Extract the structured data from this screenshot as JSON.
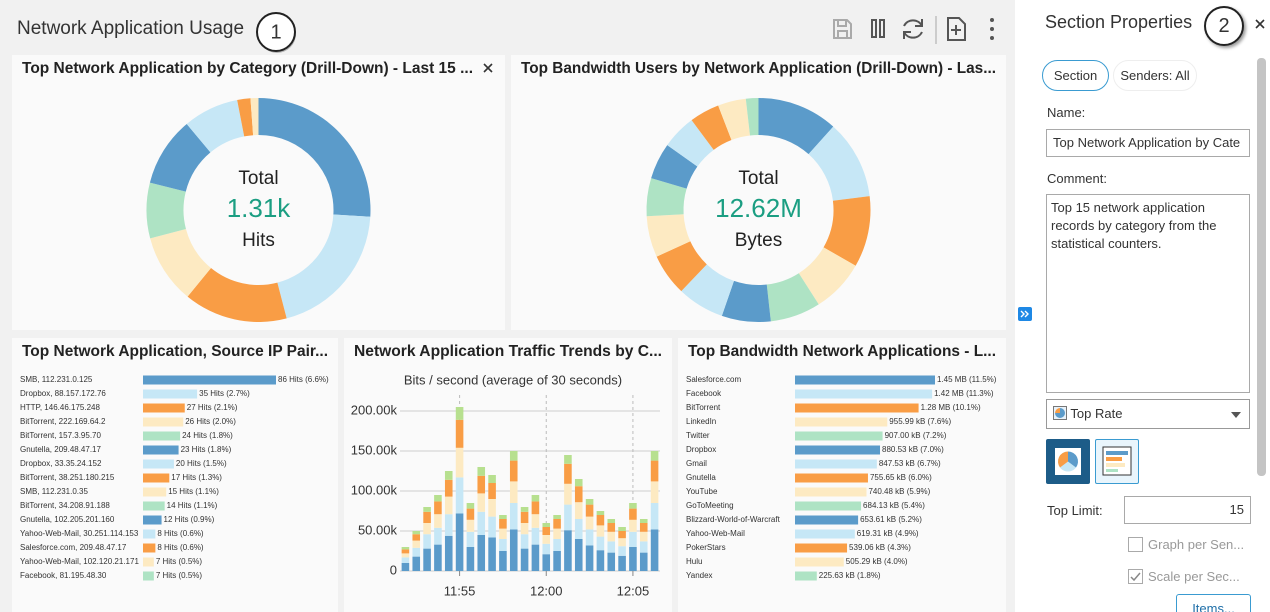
{
  "header": {
    "title": "Network Application Usage",
    "badge": "1"
  },
  "panels": [
    {
      "type": "donut",
      "title": "Top Network Application by Category (Drill-Down) - Last 15 ...",
      "center_label": "Total",
      "center_value": "1.31k",
      "center_unit": "Hits",
      "values": [
        340,
        262,
        196,
        131,
        105,
        131,
        105,
        25,
        15
      ],
      "colors": [
        "#5b9bca",
        "#c6e7f6",
        "#f99d45",
        "#fdeac2",
        "#aee3c4"
      ]
    },
    {
      "type": "donut",
      "title": "Top Bandwidth Users by Network Application (Drill-Down) - Las...",
      "center_label": "Total",
      "center_value": "12.62M",
      "center_unit": "Bytes"
    },
    {
      "type": "hbar",
      "title": "Top Network Application, Source IP Pair...",
      "categories": [
        "SMB, 112.231.0.125",
        "Dropbox, 88.157.172.76",
        "HTTP, 146.46.175.248",
        "BitTorrent, 222.169.64.2",
        "BitTorrent, 157.3.95.70",
        "Gnutella, 209.48.47.17",
        "Dropbox, 33.35.24.152",
        "BitTorrent, 38.251.180.215",
        "SMB, 112.231.0.35",
        "BitTorrent, 34.208.91.188",
        "Gnutella, 102.205.201.160",
        "Yahoo-Web-Mail, 30.251.114.153",
        "Salesforce.com, 209.48.47.17",
        "Yahoo-Web-Mail, 102.120.21.171",
        "Facebook, 81.195.48.30"
      ],
      "values": [
        86,
        35,
        27,
        26,
        24,
        23,
        20,
        17,
        15,
        14,
        12,
        8,
        8,
        7,
        7
      ],
      "value_labels": [
        "86 Hits (6.6%)",
        "35 Hits (2.7%)",
        "27 Hits (2.1%)",
        "26 Hits (2.0%)",
        "24 Hits (1.8%)",
        "23 Hits (1.8%)",
        "20 Hits (1.5%)",
        "17 Hits (1.3%)",
        "15 Hits (1.1%)",
        "14 Hits (1.1%)",
        "12 Hits (0.9%)",
        "8 Hits (0.6%)",
        "8 Hits (0.6%)",
        "7 Hits (0.5%)",
        "7 Hits (0.5%)"
      ],
      "colors": [
        "#5b9bca",
        "#c6e7f6",
        "#f99d45",
        "#fdeac2",
        "#aee3c4"
      ]
    },
    {
      "type": "stacked-bar",
      "title": "Network Application Traffic Trends by C...",
      "subtitle": "Bits / second (average of 30 seconds)",
      "ylim": [
        0,
        220000
      ],
      "yticks": [
        {
          "value": 0,
          "label": "0"
        },
        {
          "value": 50000,
          "label": "50.00k"
        },
        {
          "value": 100000,
          "label": "100.00k"
        },
        {
          "value": 150000,
          "label": "150.00k"
        },
        {
          "value": 200000,
          "label": "200.00k"
        }
      ],
      "xlim": [
        -0.5,
        23.5
      ],
      "xticks": [
        {
          "value": 5,
          "label": "11:55"
        },
        {
          "value": 13,
          "label": "12:00"
        },
        {
          "value": 21,
          "label": "12:05"
        }
      ],
      "grid": true,
      "series": [
        {
          "color": "#5b9bca",
          "values": [
            10000,
            18000,
            28000,
            33000,
            44000,
            72000,
            30000,
            45000,
            42000,
            25000,
            52000,
            28000,
            33000,
            21000,
            25000,
            51000,
            40000,
            32000,
            26000,
            23000,
            19000,
            30000,
            23000,
            52000
          ]
        },
        {
          "color": "#c6e7f6",
          "values": [
            7000,
            11000,
            18000,
            21000,
            27000,
            45000,
            19000,
            29000,
            26000,
            15000,
            33000,
            18000,
            21000,
            13000,
            15000,
            32000,
            25000,
            20000,
            17000,
            14000,
            12000,
            19000,
            14000,
            33000
          ]
        },
        {
          "color": "#fdeac2",
          "values": [
            5000,
            9000,
            14000,
            17000,
            22000,
            37000,
            15000,
            23000,
            22000,
            13000,
            27000,
            14000,
            17000,
            11000,
            13000,
            26000,
            21000,
            16000,
            14000,
            12000,
            10000,
            15000,
            12000,
            27000
          ]
        },
        {
          "color": "#f99d45",
          "values": [
            5000,
            8000,
            14000,
            16000,
            21000,
            35000,
            14000,
            22000,
            20000,
            12000,
            26000,
            14000,
            16000,
            10000,
            12000,
            25000,
            20000,
            15000,
            13000,
            11000,
            9000,
            14000,
            11000,
            26000
          ]
        },
        {
          "color": "#b7e08f",
          "values": [
            3000,
            4000,
            6000,
            8000,
            11000,
            16000,
            7000,
            11000,
            10000,
            5000,
            12000,
            6000,
            8000,
            5000,
            5000,
            11000,
            9000,
            7000,
            5000,
            5000,
            5000,
            7000,
            5000,
            12000
          ]
        }
      ]
    },
    {
      "type": "hbar",
      "title": "Top Bandwidth Network Applications - L...",
      "categories": [
        "Salesforce.com",
        "Facebook",
        "BitTorrent",
        "LinkedIn",
        "Twitter",
        "Dropbox",
        "Gmail",
        "Gnutella",
        "YouTube",
        "GoToMeeting",
        "Blizzard-World-of-Warcraft",
        "Yahoo-Web-Mail",
        "PokerStars",
        "Hulu",
        "Yandex"
      ],
      "values": [
        1450,
        1420,
        1280,
        955.99,
        907.0,
        880.53,
        847.53,
        755.65,
        740.48,
        684.13,
        653.61,
        619.31,
        539.06,
        505.29,
        225.63
      ],
      "value_labels": [
        "1.45 MB (11.5%)",
        "1.42 MB (11.3%)",
        "1.28 MB (10.1%)",
        "955.99 kB (7.6%)",
        "907.00 kB (7.2%)",
        "880.53 kB (7.0%)",
        "847.53 kB (6.7%)",
        "755.65 kB (6.0%)",
        "740.48 kB (5.9%)",
        "684.13 kB (5.4%)",
        "653.61 kB (5.2%)",
        "619.31 kB (4.9%)",
        "539.06 kB (4.3%)",
        "505.29 kB (4.0%)",
        "225.63 kB (1.8%)"
      ],
      "colors": [
        "#5b9bca",
        "#c6e7f6",
        "#f99d45",
        "#fdeac2",
        "#aee3c4"
      ]
    }
  ],
  "properties": {
    "title": "Section Properties",
    "badge": "2",
    "tabs": [
      "Section",
      "Senders: All"
    ],
    "name_label": "Name:",
    "name_value": "Top Network Application by Cate",
    "comment_label": "Comment:",
    "comment": "Top 15 network application records by category from the statistical counters.",
    "select": "Top Rate",
    "top_limit_label": "Top Limit:",
    "top_limit": "15",
    "checkboxes": [
      {
        "label": "Graph per Sen...",
        "checked": false
      },
      {
        "label": "Scale per Sec...",
        "checked": true
      }
    ],
    "button": "Items..."
  }
}
